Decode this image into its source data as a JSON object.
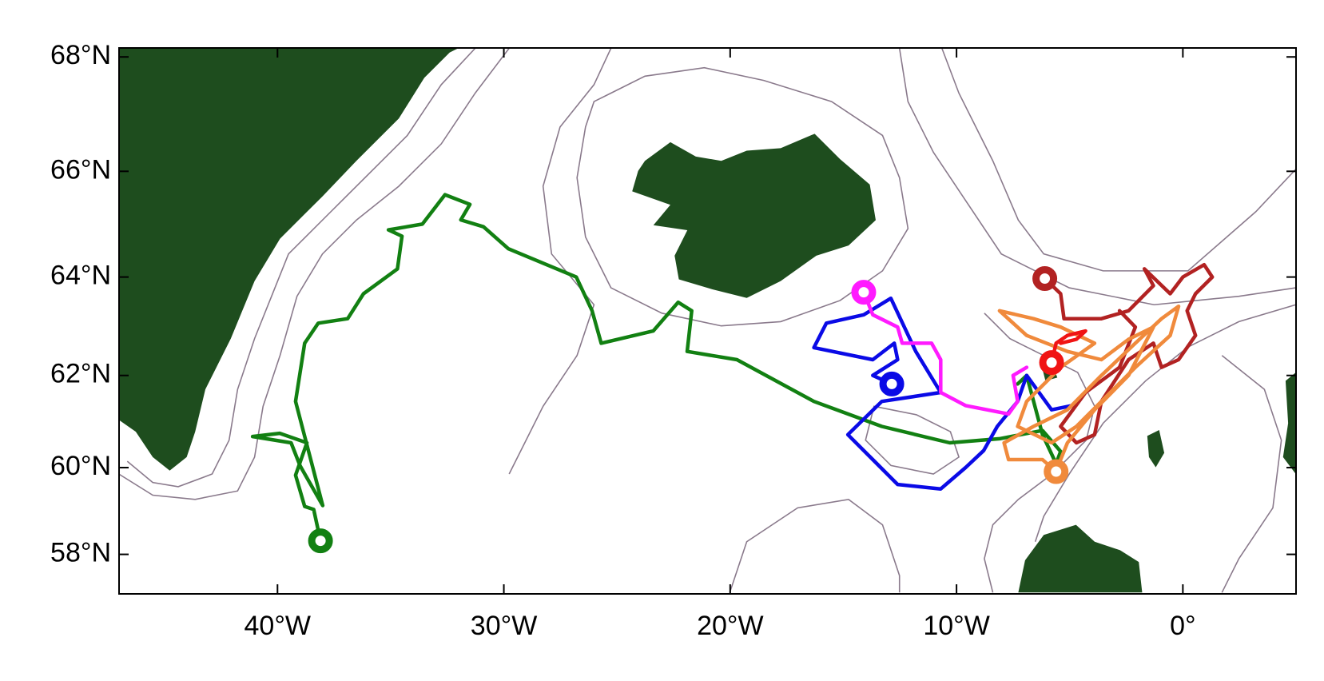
{
  "chart_data": {
    "type": "map",
    "projection": "mercator",
    "xlim": [
      -47,
      5
    ],
    "ylim": [
      57.05,
      68.15
    ],
    "xticks": [
      {
        "value": -40,
        "label": "40°W"
      },
      {
        "value": -30,
        "label": "30°W"
      },
      {
        "value": -20,
        "label": "20°W"
      },
      {
        "value": -10,
        "label": "10°W"
      },
      {
        "value": 0,
        "label": "0°"
      }
    ],
    "yticks": [
      {
        "value": 58,
        "label": "58°N"
      },
      {
        "value": 60,
        "label": "60°N"
      },
      {
        "value": 62,
        "label": "62°N"
      },
      {
        "value": 64,
        "label": "64°N"
      },
      {
        "value": 66,
        "label": "66°N"
      },
      {
        "value": 68,
        "label": "68°N"
      }
    ],
    "series": [
      {
        "color": "#128012",
        "x": [
          -38.1,
          -38.4,
          -38.8,
          -39.2,
          -38.7,
          -39.9,
          -41.1,
          -39.4,
          -39.0,
          -38.0,
          -39.2,
          -38.8,
          -38.2,
          -36.9,
          -36.2,
          -34.7,
          -34.5,
          -35.1,
          -33.6,
          -32.6,
          -31.5,
          -31.9,
          -30.9,
          -29.8,
          -26.8,
          -26.1,
          -25.7,
          -23.4,
          -22.3,
          -21.7,
          -21.9,
          -19.7,
          -16.3,
          -13.3,
          -10.3,
          -8.1,
          -6.2,
          -5.4,
          -5.6,
          -6.2,
          -6.9,
          -7.3
        ],
        "values": [
          58.32,
          59.05,
          59.12,
          59.83,
          60.55,
          60.76,
          60.69,
          60.55,
          60.04,
          59.14,
          61.45,
          62.67,
          63.08,
          63.17,
          63.67,
          64.16,
          64.79,
          64.91,
          65.02,
          65.57,
          65.39,
          65.1,
          64.97,
          64.55,
          64.0,
          63.33,
          62.67,
          62.92,
          63.5,
          63.33,
          62.5,
          62.33,
          61.45,
          60.91,
          60.55,
          60.64,
          60.82,
          60.36,
          60.09,
          60.73,
          62.0,
          61.82
        ]
      },
      {
        "color": "#0a0ae6",
        "x": [
          -12.86,
          -13.7,
          -12.6,
          -12.75,
          -13.7,
          -16.3,
          -15.75,
          -14.1,
          -12.9,
          -11.8,
          -10.7,
          -13.3,
          -14.8,
          -13.7,
          -12.6,
          -10.7,
          -9.6,
          -8.8,
          -8.2,
          -7.3,
          -6.9,
          -5.8,
          -4.9
        ],
        "values": [
          61.82,
          62.0,
          62.33,
          62.67,
          62.33,
          62.58,
          63.08,
          63.25,
          63.58,
          62.5,
          61.64,
          61.45,
          60.73,
          60.18,
          59.62,
          59.52,
          60.0,
          60.38,
          60.91,
          61.45,
          62.0,
          61.27,
          61.36
        ]
      },
      {
        "color": "#ff1aff",
        "x": [
          -14.1,
          -13.7,
          -12.6,
          -12.4,
          -11.1,
          -10.7,
          -10.7,
          -9.6,
          -7.7,
          -7.3,
          -7.5,
          -6.9
        ],
        "values": [
          63.7,
          63.25,
          63.0,
          62.67,
          62.67,
          62.33,
          61.64,
          61.36,
          61.18,
          61.45,
          62.0,
          62.17
        ]
      },
      {
        "color": "#b22222",
        "x": [
          -6.1,
          -5.4,
          -5.25,
          -3.6,
          -2.4,
          -1.3,
          -1.7,
          -0.56,
          0,
          0.94,
          1.3,
          0.56,
          0.19,
          0.56,
          -0.19,
          -0.94,
          -1.3,
          -2.4,
          -3.6,
          -3.9,
          -4.7,
          -5.4,
          -4.3,
          -2.8,
          -2.1,
          -2.8
        ],
        "values": [
          63.97,
          63.67,
          63.17,
          63.17,
          63.33,
          63.83,
          64.16,
          63.67,
          64.0,
          64.24,
          64.0,
          63.67,
          63.33,
          62.83,
          62.33,
          62.17,
          62.67,
          62.33,
          61.45,
          60.73,
          60.55,
          60.91,
          61.64,
          62.17,
          63.0,
          63.33
        ]
      },
      {
        "color": "#f08a3c",
        "x": [
          -5.6,
          -6.2,
          -7.7,
          -7.9,
          -6.6,
          -5.1,
          -3.6,
          -2.1,
          -0.94,
          -0.19,
          -0.56,
          -2.1,
          -3.6,
          -4.7,
          -5.8,
          -7.3,
          -6.9,
          -5.4,
          -3.9,
          -5.4,
          -6.6,
          -8.1,
          -6.9,
          -5.1,
          -3.6,
          -2.4,
          -1.3,
          -2.4,
          -3.9,
          -5.1,
          -5.4
        ],
        "values": [
          59.91,
          60.18,
          60.18,
          60.55,
          60.91,
          61.27,
          62.0,
          62.67,
          63.17,
          63.42,
          62.83,
          62.17,
          61.45,
          60.91,
          60.55,
          60.91,
          61.45,
          62.17,
          62.67,
          63.0,
          63.17,
          63.33,
          62.83,
          62.5,
          62.33,
          62.75,
          63.0,
          62.0,
          61.27,
          60.55,
          60.18
        ]
      },
      {
        "color": "#f01414",
        "x": [
          -5.8,
          -5.6,
          -5.1,
          -4.3,
          -4.7,
          -5.4
        ],
        "values": [
          62.27,
          62.67,
          62.83,
          62.92,
          62.75,
          62.67
        ]
      }
    ]
  }
}
